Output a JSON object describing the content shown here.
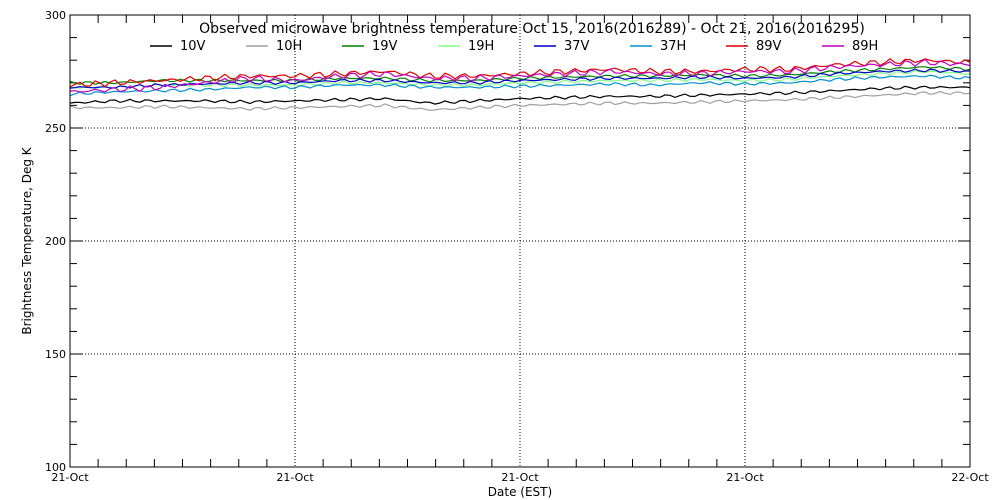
{
  "chart_data": {
    "type": "line",
    "title": "Observed microwave brightness temperature Oct 15, 2016(2016289) - Oct 21, 2016(2016295)",
    "xlabel": "Date (EST)",
    "ylabel": "Brightness Temperature, Deg K",
    "ylim": [
      100,
      300
    ],
    "xlim": [
      0,
      1
    ],
    "grid": true,
    "legend_position": "top",
    "x_ticks": [
      {
        "x": 0,
        "label": "21-Oct"
      },
      {
        "x": 0.25,
        "label": "21-Oct"
      },
      {
        "x": 0.5,
        "label": "21-Oct"
      },
      {
        "x": 0.75,
        "label": "21-Oct"
      },
      {
        "x": 1,
        "label": "22-Oct"
      }
    ],
    "y_ticks": [
      100,
      150,
      200,
      250,
      300
    ],
    "x": [
      0,
      0.05,
      0.1,
      0.15,
      0.2,
      0.25,
      0.3,
      0.35,
      0.4,
      0.45,
      0.5,
      0.55,
      0.6,
      0.65,
      0.7,
      0.75,
      0.8,
      0.85,
      0.9,
      0.95,
      1.0
    ],
    "series": [
      {
        "name": "10V",
        "color": "#000000",
        "values": [
          261,
          262,
          262,
          262,
          261.5,
          262,
          262.5,
          263,
          261,
          262,
          263,
          263.5,
          264,
          264,
          264.5,
          265,
          265.5,
          266.5,
          267.5,
          268,
          268
        ]
      },
      {
        "name": "10H",
        "color": "#a0a0a0",
        "values": [
          259,
          259,
          259.5,
          259,
          258.5,
          259,
          259.5,
          260,
          258,
          259,
          260,
          260.5,
          261,
          261,
          261.5,
          262,
          262.5,
          263.5,
          264.5,
          265.5,
          265.5
        ]
      },
      {
        "name": "19V",
        "color": "#008000",
        "values": [
          270,
          270,
          271,
          271,
          271,
          271,
          272,
          272,
          271,
          271,
          272,
          272.5,
          273,
          273,
          273.5,
          273,
          273.5,
          275,
          276,
          277,
          276
        ]
      },
      {
        "name": "19H",
        "color": "#80ff80",
        "values": [
          268,
          268,
          269,
          269,
          269,
          269,
          270,
          270,
          269,
          269,
          270,
          270.5,
          271,
          271,
          271.5,
          271,
          271.5,
          273,
          274,
          275,
          274
        ]
      },
      {
        "name": "37V",
        "color": "#0000c8",
        "values": [
          268,
          268,
          269,
          269.5,
          270,
          270,
          271,
          271,
          270,
          270,
          271,
          271.5,
          272,
          272,
          272.5,
          272,
          272.5,
          274,
          275,
          275.5,
          275
        ]
      },
      {
        "name": "37H",
        "color": "#0090d0",
        "values": [
          265,
          266,
          266.5,
          267,
          268,
          268,
          269,
          269,
          268,
          268,
          268.5,
          269,
          269.5,
          269,
          270,
          269.5,
          270,
          271.5,
          272.5,
          273,
          272
        ]
      },
      {
        "name": "89V",
        "color": "#e00000",
        "values": [
          269,
          270,
          271,
          272,
          273,
          273,
          274,
          275,
          273,
          273,
          274,
          275,
          276,
          275,
          275,
          276,
          276,
          278,
          279,
          280,
          279
        ]
      },
      {
        "name": "89H",
        "color": "#c000c0",
        "values": [
          266,
          267,
          268,
          270,
          272,
          271,
          273,
          274,
          272,
          272,
          273,
          274,
          275,
          274,
          274,
          275,
          275,
          277,
          278,
          279,
          278
        ]
      }
    ]
  }
}
